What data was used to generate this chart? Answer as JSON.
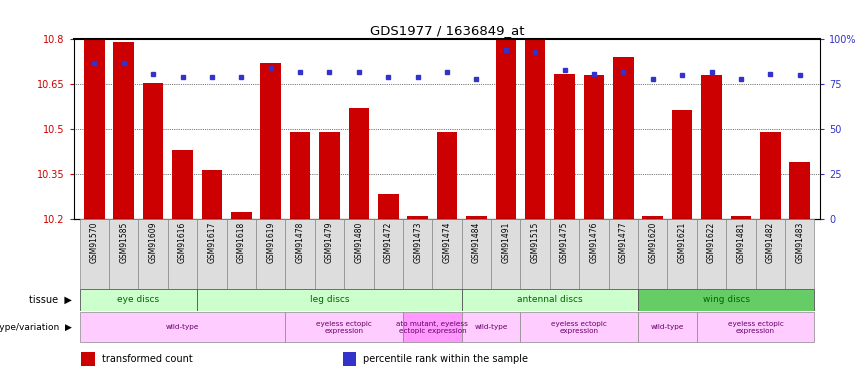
{
  "title": "GDS1977 / 1636849_at",
  "samples": [
    "GSM91570",
    "GSM91585",
    "GSM91609",
    "GSM91616",
    "GSM91617",
    "GSM91618",
    "GSM91619",
    "GSM91478",
    "GSM91479",
    "GSM91480",
    "GSM91472",
    "GSM91473",
    "GSM91474",
    "GSM91484",
    "GSM91491",
    "GSM91515",
    "GSM91475",
    "GSM91476",
    "GSM91477",
    "GSM91620",
    "GSM91621",
    "GSM91622",
    "GSM91481",
    "GSM91482",
    "GSM91483"
  ],
  "bar_values": [
    10.8,
    10.79,
    10.655,
    10.43,
    10.365,
    10.225,
    10.72,
    10.49,
    10.49,
    10.57,
    10.285,
    10.21,
    10.49,
    10.21,
    10.8,
    10.8,
    10.685,
    10.68,
    10.74,
    10.21,
    10.565,
    10.68,
    10.21,
    10.49,
    10.39
  ],
  "percentile_values": [
    87,
    87,
    81,
    79,
    79,
    79,
    84,
    82,
    82,
    82,
    79,
    79,
    82,
    78,
    94,
    93,
    83,
    81,
    82,
    78,
    80,
    82,
    78,
    81,
    80
  ],
  "ymin": 10.2,
  "ymax": 10.8,
  "yticks": [
    10.2,
    10.35,
    10.5,
    10.65,
    10.8
  ],
  "right_yticks": [
    0,
    25,
    50,
    75,
    100
  ],
  "bar_color": "#cc0000",
  "dot_color": "#3333cc",
  "tissue_groups": [
    {
      "label": "eye discs",
      "start": 0,
      "end": 4,
      "color": "#ccffcc"
    },
    {
      "label": "leg discs",
      "start": 4,
      "end": 13,
      "color": "#ccffcc"
    },
    {
      "label": "antennal discs",
      "start": 13,
      "end": 19,
      "color": "#ccffcc"
    },
    {
      "label": "wing discs",
      "start": 19,
      "end": 25,
      "color": "#66cc66"
    }
  ],
  "genotype_groups": [
    {
      "label": "wild-type",
      "start": 0,
      "end": 7,
      "color": "#ffccff"
    },
    {
      "label": "eyeless ectopic\nexpression",
      "start": 7,
      "end": 11,
      "color": "#ffccff"
    },
    {
      "label": "ato mutant, eyeless\nectopic expression",
      "start": 11,
      "end": 13,
      "color": "#ff99ff"
    },
    {
      "label": "wild-type",
      "start": 13,
      "end": 15,
      "color": "#ffccff"
    },
    {
      "label": "eyeless ectopic\nexpression",
      "start": 15,
      "end": 19,
      "color": "#ffccff"
    },
    {
      "label": "wild-type",
      "start": 19,
      "end": 21,
      "color": "#ffccff"
    },
    {
      "label": "eyeless ectopic\nexpression",
      "start": 21,
      "end": 25,
      "color": "#ffccff"
    }
  ],
  "tissue_row_label": "tissue",
  "genotype_row_label": "genotype/variation",
  "legend_items": [
    {
      "color": "#cc0000",
      "label": "transformed count"
    },
    {
      "color": "#3333cc",
      "label": "percentile rank within the sample"
    }
  ]
}
